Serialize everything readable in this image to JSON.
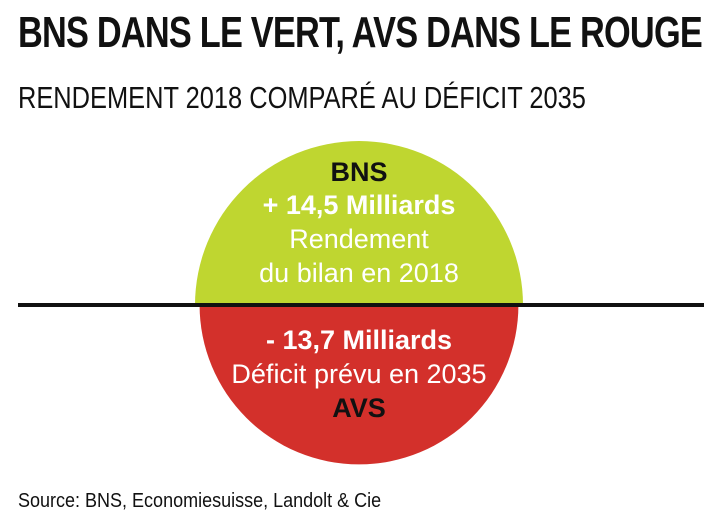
{
  "title": "BNS DANS LE VERT, AVS DANS LE ROUGE",
  "subtitle": "RENDEMENT 2018 COMPARÉ AU DÉFICIT 2035",
  "source": "Source: BNS, Economiesuisse, Landolt & Cie",
  "colors": {
    "positive": "#bfd630",
    "negative": "#d3302b",
    "baseline": "#111111"
  },
  "chart_data": {
    "type": "pie",
    "unit": "Milliards",
    "series": [
      {
        "name": "BNS",
        "value": 14.5,
        "value_label": "+ 14,5 Milliards",
        "description_lines": [
          "Rendement",
          "du bilan en 2018"
        ],
        "color": "#bfd630"
      },
      {
        "name": "AVS",
        "value": -13.7,
        "value_label": "- 13,7 Milliards",
        "description_lines": [
          "Déficit prévu en 2035"
        ],
        "color": "#d3302b"
      }
    ]
  }
}
